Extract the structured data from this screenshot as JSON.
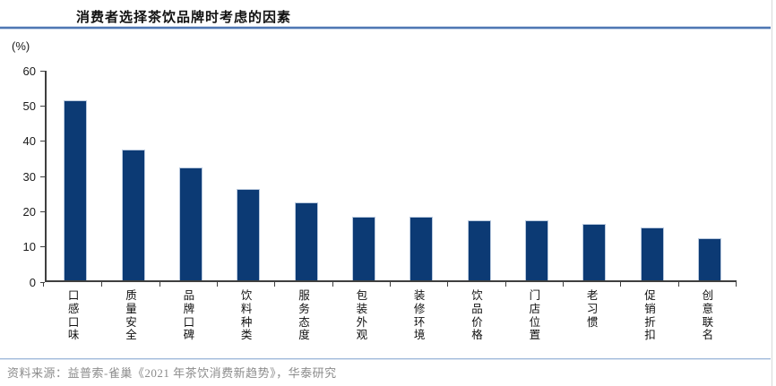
{
  "header": {
    "title": "消费者选择茶饮品牌时考虑的因素"
  },
  "chart_data": {
    "type": "bar",
    "title": "消费者选择茶饮品牌时考虑的因素",
    "unit_label": "(%)",
    "xlabel": "",
    "ylabel": "(%)",
    "ylim": [
      0,
      60
    ],
    "yticks": [
      0,
      10,
      20,
      30,
      40,
      50,
      60
    ],
    "grid": false,
    "legend": "none",
    "bar_color": "#0c3a74",
    "categories": [
      "口感口味",
      "质量安全",
      "品牌口碑",
      "饮料种类",
      "服务态度",
      "包装外观",
      "装修环境",
      "饮品价格",
      "门店位置",
      "老习惯",
      "促销折扣",
      "创意联名"
    ],
    "values": [
      51,
      37,
      32,
      26,
      22,
      18,
      18,
      17,
      17,
      16,
      15,
      12
    ]
  },
  "footer": {
    "source": "资料来源：益普索-雀巢《2021 年茶饮消费新趋势》，华泰研究"
  },
  "colors": {
    "bar": "#0c3a74",
    "title_rule": "#4f77b3",
    "footer_rule": "#9fb9da",
    "axis": "#3f3f3f",
    "source_text": "#8c8c8c"
  }
}
